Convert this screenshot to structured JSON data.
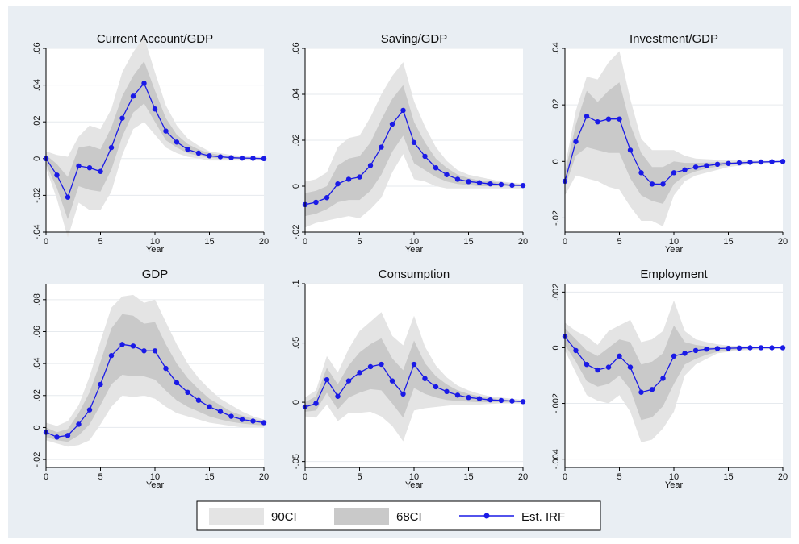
{
  "chart_data": [
    {
      "type": "line",
      "title": "Current Account/GDP",
      "xlabel": "Year",
      "ylabel": "",
      "xlim": [
        0,
        20
      ],
      "ylim": [
        -0.04,
        0.06
      ],
      "xticks": [
        "0",
        "5",
        "10",
        "15",
        "20"
      ],
      "yticks": [
        "-.04",
        "-.02",
        "0",
        ".02",
        ".04",
        ".06"
      ],
      "x": [
        0,
        1,
        2,
        3,
        4,
        5,
        6,
        7,
        8,
        9,
        10,
        11,
        12,
        13,
        14,
        15,
        16,
        17,
        18,
        19,
        20
      ],
      "series": [
        {
          "name": "Est. IRF",
          "values": [
            0,
            -0.009,
            -0.021,
            -0.004,
            -0.005,
            -0.007,
            0.006,
            0.022,
            0.034,
            0.041,
            0.027,
            0.015,
            0.009,
            0.005,
            0.003,
            0.0015,
            0.001,
            0.0005,
            0.0003,
            0.0002,
            0.0
          ]
        },
        {
          "name": "90CI",
          "lower": [
            -0.005,
            -0.022,
            -0.043,
            -0.024,
            -0.028,
            -0.028,
            -0.018,
            0.002,
            0.016,
            0.02,
            0.013,
            0.006,
            0.003,
            0.001,
            0.0,
            -0.001,
            -0.001,
            -0.001,
            -0.001,
            -0.001,
            -0.001
          ],
          "upper": [
            0.004,
            0.002,
            0.001,
            0.012,
            0.018,
            0.016,
            0.027,
            0.047,
            0.058,
            0.066,
            0.047,
            0.029,
            0.018,
            0.011,
            0.007,
            0.004,
            0.003,
            0.002,
            0.0015,
            0.001,
            0.001
          ]
        },
        {
          "name": "68CI",
          "lower": [
            -0.003,
            -0.016,
            -0.033,
            -0.015,
            -0.017,
            -0.018,
            -0.006,
            0.012,
            0.025,
            0.03,
            0.02,
            0.01,
            0.006,
            0.003,
            0.0015,
            0.0005,
            0.0,
            0.0,
            -0.0002,
            -0.0002,
            -0.0003
          ],
          "upper": [
            0.002,
            -0.003,
            -0.01,
            0.006,
            0.007,
            0.005,
            0.017,
            0.034,
            0.045,
            0.053,
            0.037,
            0.022,
            0.013,
            0.008,
            0.005,
            0.003,
            0.002,
            0.001,
            0.0008,
            0.0005,
            0.0003
          ]
        }
      ]
    },
    {
      "type": "line",
      "title": "Saving/GDP",
      "xlabel": "Year",
      "ylabel": "",
      "xlim": [
        0,
        20
      ],
      "ylim": [
        -0.02,
        0.06
      ],
      "xticks": [
        "0",
        "5",
        "10",
        "15",
        "20"
      ],
      "yticks": [
        "-.02",
        "0",
        ".02",
        ".04",
        ".06"
      ],
      "x": [
        0,
        1,
        2,
        3,
        4,
        5,
        6,
        7,
        8,
        9,
        10,
        11,
        12,
        13,
        14,
        15,
        16,
        17,
        18,
        19,
        20
      ],
      "series": [
        {
          "name": "Est. IRF",
          "values": [
            -0.008,
            -0.007,
            -0.005,
            0.001,
            0.003,
            0.004,
            0.009,
            0.017,
            0.027,
            0.033,
            0.019,
            0.013,
            0.008,
            0.005,
            0.003,
            0.002,
            0.0015,
            0.001,
            0.0007,
            0.0004,
            0.0003
          ]
        },
        {
          "name": "90CI",
          "lower": [
            -0.018,
            -0.016,
            -0.015,
            -0.014,
            -0.013,
            -0.014,
            -0.01,
            -0.005,
            0.006,
            0.014,
            0.003,
            0.002,
            0.0,
            -0.001,
            -0.001,
            -0.001,
            -0.001,
            -0.001,
            -0.001,
            -0.001,
            -0.001
          ],
          "upper": [
            0.002,
            0.003,
            0.006,
            0.017,
            0.021,
            0.022,
            0.03,
            0.04,
            0.048,
            0.054,
            0.037,
            0.026,
            0.017,
            0.011,
            0.007,
            0.005,
            0.004,
            0.003,
            0.002,
            0.0015,
            0.001
          ]
        },
        {
          "name": "68CI",
          "lower": [
            -0.013,
            -0.012,
            -0.01,
            -0.007,
            -0.006,
            -0.006,
            -0.002,
            0.005,
            0.015,
            0.022,
            0.01,
            0.007,
            0.004,
            0.002,
            0.001,
            0.0005,
            0.0,
            0.0,
            0.0,
            0.0,
            0.0
          ],
          "upper": [
            -0.003,
            -0.002,
            0.0,
            0.009,
            0.012,
            0.013,
            0.019,
            0.029,
            0.038,
            0.044,
            0.028,
            0.019,
            0.012,
            0.008,
            0.005,
            0.0035,
            0.0025,
            0.002,
            0.0015,
            0.001,
            0.0008
          ]
        }
      ]
    },
    {
      "type": "line",
      "title": "Investment/GDP",
      "xlabel": "Year",
      "ylabel": "",
      "xlim": [
        0,
        20
      ],
      "ylim": [
        -0.025,
        0.04
      ],
      "xticks": [
        "0",
        "5",
        "10",
        "15",
        "20"
      ],
      "yticks": [
        "-.02",
        "0",
        ".02",
        ".04"
      ],
      "x": [
        0,
        1,
        2,
        3,
        4,
        5,
        6,
        7,
        8,
        9,
        10,
        11,
        12,
        13,
        14,
        15,
        16,
        17,
        18,
        19,
        20
      ],
      "series": [
        {
          "name": "Est. IRF",
          "values": [
            -0.007,
            0.007,
            0.016,
            0.014,
            0.015,
            0.015,
            0.004,
            -0.004,
            -0.008,
            -0.008,
            -0.004,
            -0.003,
            -0.002,
            -0.0015,
            -0.001,
            -0.0007,
            -0.0005,
            -0.0003,
            -0.0002,
            -0.0001,
            0.0
          ]
        },
        {
          "name": "90CI",
          "lower": [
            -0.012,
            -0.005,
            -0.006,
            -0.007,
            -0.009,
            -0.01,
            -0.016,
            -0.021,
            -0.021,
            -0.023,
            -0.012,
            -0.007,
            -0.005,
            -0.004,
            -0.003,
            -0.002,
            -0.0015,
            -0.001,
            -0.0008,
            -0.0005,
            -0.0004
          ],
          "upper": [
            -0.002,
            0.018,
            0.03,
            0.029,
            0.035,
            0.039,
            0.022,
            0.008,
            0.004,
            0.004,
            0.004,
            0.002,
            0.001,
            0.0008,
            0.0006,
            0.0005,
            0.0004,
            0.0003,
            0.0003,
            0.0002,
            0.0002
          ]
        },
        {
          "name": "68CI",
          "lower": [
            -0.009,
            0.002,
            0.005,
            0.004,
            0.003,
            0.003,
            -0.006,
            -0.012,
            -0.014,
            -0.015,
            -0.008,
            -0.005,
            -0.0035,
            -0.0025,
            -0.0018,
            -0.0013,
            -0.001,
            -0.0007,
            -0.0005,
            -0.0003,
            -0.0002
          ],
          "upper": [
            -0.004,
            0.013,
            0.025,
            0.021,
            0.025,
            0.028,
            0.013,
            0.003,
            -0.002,
            -0.002,
            0.0,
            -0.0005,
            -0.0005,
            -0.0004,
            -0.0003,
            -0.0002,
            -0.0001,
            0.0,
            0.0,
            0.0,
            0.0001
          ]
        }
      ]
    },
    {
      "type": "line",
      "title": "GDP",
      "xlabel": "Year",
      "ylabel": "",
      "xlim": [
        0,
        20
      ],
      "ylim": [
        -0.025,
        0.09
      ],
      "xticks": [
        "0",
        "5",
        "10",
        "15",
        "20"
      ],
      "yticks": [
        "-.02",
        "0",
        ".02",
        ".04",
        ".06",
        ".08"
      ],
      "x": [
        0,
        1,
        2,
        3,
        4,
        5,
        6,
        7,
        8,
        9,
        10,
        11,
        12,
        13,
        14,
        15,
        16,
        17,
        18,
        19,
        20
      ],
      "series": [
        {
          "name": "Est. IRF",
          "values": [
            -0.003,
            -0.006,
            -0.005,
            0.002,
            0.011,
            0.027,
            0.045,
            0.052,
            0.051,
            0.048,
            0.048,
            0.037,
            0.028,
            0.022,
            0.017,
            0.013,
            0.01,
            0.007,
            0.005,
            0.004,
            0.003
          ]
        },
        {
          "name": "90CI",
          "lower": [
            -0.008,
            -0.01,
            -0.012,
            -0.011,
            -0.008,
            0.002,
            0.013,
            0.02,
            0.019,
            0.02,
            0.018,
            0.013,
            0.009,
            0.007,
            0.005,
            0.003,
            0.002,
            0.001,
            0.0,
            0.0,
            0.0
          ],
          "upper": [
            0.003,
            0.001,
            0.004,
            0.014,
            0.032,
            0.054,
            0.075,
            0.082,
            0.083,
            0.078,
            0.08,
            0.066,
            0.052,
            0.04,
            0.031,
            0.024,
            0.018,
            0.014,
            0.01,
            0.007,
            0.005
          ]
        },
        {
          "name": "68CI",
          "lower": [
            -0.006,
            -0.008,
            -0.009,
            -0.005,
            0.002,
            0.014,
            0.027,
            0.033,
            0.032,
            0.032,
            0.03,
            0.023,
            0.017,
            0.013,
            0.01,
            0.007,
            0.005,
            0.0035,
            0.0025,
            0.0018,
            0.0013
          ],
          "upper": [
            0.0,
            -0.003,
            -0.001,
            0.009,
            0.022,
            0.041,
            0.062,
            0.071,
            0.07,
            0.065,
            0.066,
            0.052,
            0.04,
            0.031,
            0.024,
            0.018,
            0.014,
            0.01,
            0.0075,
            0.0055,
            0.004
          ]
        }
      ]
    },
    {
      "type": "line",
      "title": "Consumption",
      "xlabel": "Year",
      "ylabel": "",
      "xlim": [
        0,
        20
      ],
      "ylim": [
        -0.055,
        0.1
      ],
      "xticks": [
        "0",
        "5",
        "10",
        "15",
        "20"
      ],
      "yticks": [
        "-.05",
        "0",
        ".05",
        ".1"
      ],
      "x": [
        0,
        1,
        2,
        3,
        4,
        5,
        6,
        7,
        8,
        9,
        10,
        11,
        12,
        13,
        14,
        15,
        16,
        17,
        18,
        19,
        20
      ],
      "series": [
        {
          "name": "Est. IRF",
          "values": [
            -0.004,
            -0.001,
            0.019,
            0.005,
            0.018,
            0.025,
            0.03,
            0.032,
            0.018,
            0.007,
            0.032,
            0.02,
            0.013,
            0.009,
            0.006,
            0.004,
            0.003,
            0.002,
            0.0015,
            0.001,
            0.0005
          ]
        },
        {
          "name": "90CI",
          "lower": [
            -0.012,
            -0.013,
            -0.002,
            -0.016,
            -0.009,
            -0.009,
            -0.008,
            -0.012,
            -0.02,
            -0.033,
            -0.007,
            -0.005,
            -0.004,
            -0.003,
            -0.002,
            -0.002,
            -0.002,
            -0.0015,
            -0.001,
            -0.001,
            -0.001
          ],
          "upper": [
            0.004,
            0.01,
            0.039,
            0.025,
            0.045,
            0.06,
            0.068,
            0.076,
            0.056,
            0.048,
            0.073,
            0.047,
            0.031,
            0.021,
            0.014,
            0.01,
            0.007,
            0.005,
            0.004,
            0.003,
            0.002
          ]
        },
        {
          "name": "68CI",
          "lower": [
            -0.008,
            -0.007,
            0.008,
            -0.006,
            0.004,
            0.008,
            0.011,
            0.01,
            -0.001,
            -0.013,
            0.012,
            0.007,
            0.004,
            0.002,
            0.001,
            0.0005,
            0.0,
            0.0,
            0.0,
            0.0,
            0.0
          ],
          "upper": [
            0.0,
            0.005,
            0.029,
            0.015,
            0.031,
            0.042,
            0.049,
            0.054,
            0.037,
            0.027,
            0.052,
            0.033,
            0.022,
            0.015,
            0.01,
            0.007,
            0.005,
            0.0035,
            0.0025,
            0.0018,
            0.0012
          ]
        }
      ]
    },
    {
      "type": "line",
      "title": "Employment",
      "xlabel": "Year",
      "ylabel": "",
      "xlim": [
        0,
        20
      ],
      "ylim": [
        -0.0043,
        0.0023
      ],
      "xticks": [
        "0",
        "5",
        "10",
        "15",
        "20"
      ],
      "yticks": [
        "-.004",
        "-.002",
        "0",
        ".002"
      ],
      "x": [
        0,
        1,
        2,
        3,
        4,
        5,
        6,
        7,
        8,
        9,
        10,
        11,
        12,
        13,
        14,
        15,
        16,
        17,
        18,
        19,
        20
      ],
      "series": [
        {
          "name": "Est. IRF",
          "values": [
            0.0004,
            -0.0001,
            -0.0006,
            -0.0008,
            -0.0007,
            -0.0003,
            -0.0007,
            -0.0016,
            -0.0015,
            -0.0011,
            -0.0003,
            -0.0002,
            -0.0001,
            -5e-05,
            -3e-05,
            -2e-05,
            -1e-05,
            0.0,
            0.0,
            0.0,
            0.0
          ]
        },
        {
          "name": "90CI",
          "lower": [
            -0.0001,
            -0.0009,
            -0.0017,
            -0.0019,
            -0.002,
            -0.0017,
            -0.0023,
            -0.0034,
            -0.0033,
            -0.0029,
            -0.0023,
            -0.001,
            -0.0006,
            -0.0004,
            -0.0002,
            -0.00015,
            -0.0001,
            -8e-05,
            -6e-05,
            -5e-05,
            -4e-05
          ],
          "upper": [
            0.0009,
            0.0006,
            0.0004,
            0.0001,
            0.0006,
            0.0008,
            0.001,
            0.0002,
            0.0003,
            0.0006,
            0.0017,
            0.0006,
            0.0003,
            0.0002,
            0.00012,
            8e-05,
            6e-05,
            5e-05,
            4e-05,
            3e-05,
            3e-05
          ]
        },
        {
          "name": "68CI",
          "lower": [
            0.0001,
            -0.0005,
            -0.0012,
            -0.0014,
            -0.0013,
            -0.001,
            -0.0015,
            -0.0026,
            -0.0025,
            -0.0021,
            -0.0013,
            -0.0006,
            -0.0004,
            -0.00025,
            -0.00015,
            -0.0001,
            -6e-05,
            -4e-05,
            -3e-05,
            -2e-05,
            -2e-05
          ],
          "upper": [
            0.0007,
            0.0003,
            -0.0001,
            -0.0003,
            0.0,
            0.0003,
            0.0002,
            -0.0006,
            -0.0005,
            -0.0002,
            0.0008,
            0.0002,
            0.0001,
            5e-05,
            3e-05,
            2e-05,
            1e-05,
            1e-05,
            1e-05,
            1e-05,
            1e-05
          ]
        }
      ]
    }
  ],
  "legend": {
    "items": [
      {
        "label": "90CI"
      },
      {
        "label": "68CI"
      },
      {
        "label": "Est. IRF"
      }
    ]
  },
  "colors": {
    "ci90": "#e4e4e4",
    "ci68": "#c9c9c9",
    "irf": "#1a1ae6",
    "background": "#e9eef3",
    "plot_bg": "#ffffff"
  }
}
